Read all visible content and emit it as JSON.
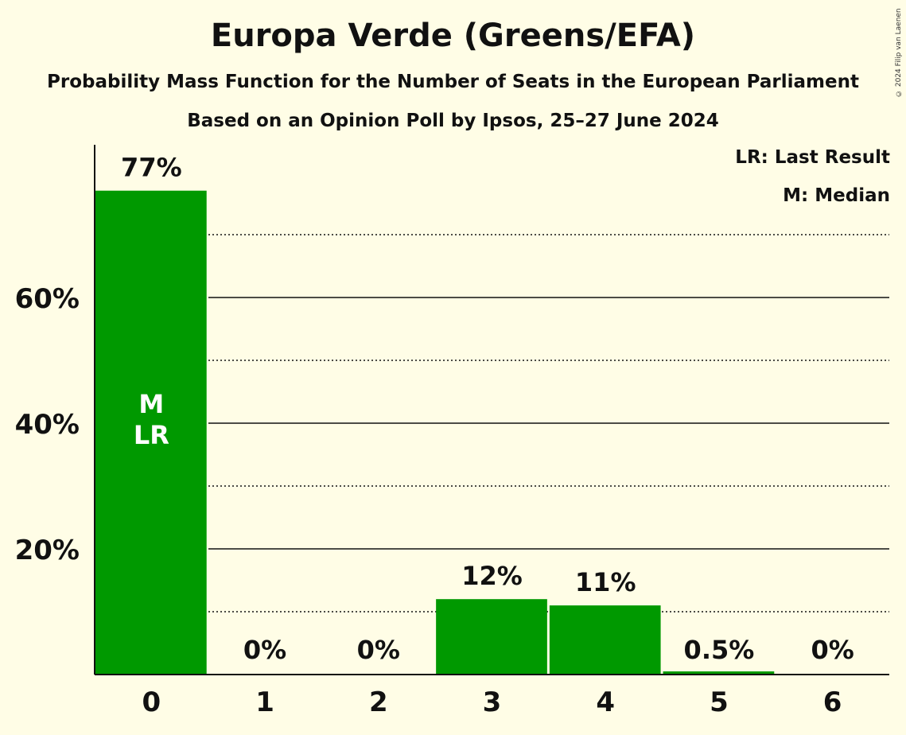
{
  "title": "Europa Verde (Greens/EFA)",
  "subtitle": "Probability Mass Function for the Number of Seats in the European Parliament",
  "subtitle2": "Based on an Opinion Poll by Ipsos, 25–27 June 2024",
  "copyright": "© 2024 Filip van Laenen",
  "legend": {
    "last_result": "LR: Last Result",
    "median": "M: Median"
  },
  "colors": {
    "bar": "#009900",
    "background": "#FFFDE6",
    "text": "#111111"
  },
  "chart_data": {
    "type": "bar",
    "title": "Europa Verde (Greens/EFA)",
    "xlabel": "",
    "ylabel": "",
    "categories": [
      "0",
      "1",
      "2",
      "3",
      "4",
      "5",
      "6"
    ],
    "values": [
      77,
      0,
      0,
      12,
      11,
      0.5,
      0
    ],
    "value_labels": [
      "77%",
      "0%",
      "0%",
      "12%",
      "11%",
      "0.5%",
      "0%"
    ],
    "ylim": [
      0,
      84
    ],
    "yticks": [
      20,
      40,
      60
    ],
    "ytick_labels": [
      "20%",
      "40%",
      "60%"
    ],
    "minor_gridlines": [
      10,
      30,
      50,
      70
    ],
    "bar_annotations": [
      {
        "category": "0",
        "lines": [
          "M",
          "LR"
        ]
      }
    ]
  }
}
